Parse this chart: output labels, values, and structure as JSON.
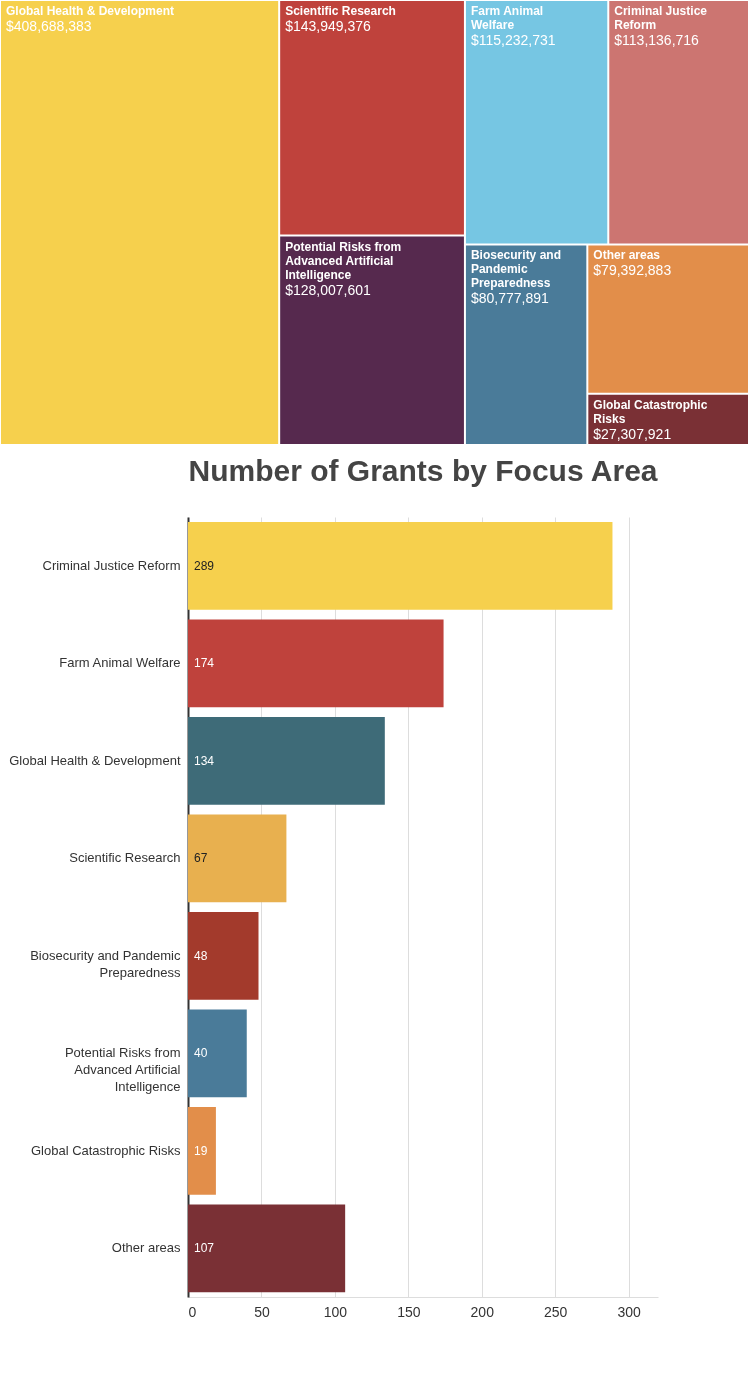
{
  "chart_data": [
    {
      "type": "other",
      "categories": [
        "Global Health & Development",
        "Scientific Research",
        "Potential Risks from Advanced Artificial Intelligence",
        "Farm Animal Welfare",
        "Criminal Justice Reform",
        "Biosecurity and Pandemic Preparedness",
        "Other areas",
        "Global Catastrophic Risks"
      ],
      "values": [
        408688383,
        143949376,
        128007601,
        115232731,
        113136716,
        80777891,
        79392883,
        27307921
      ],
      "value_labels": [
        "$408,688,383",
        "$143,949,376",
        "$128,007,601",
        "$115,232,731",
        "$113,136,716",
        "$80,777,891",
        "$79,392,883",
        "$27,307,921"
      ],
      "colors": [
        "#f6d04d",
        "#bf423c",
        "#56294e",
        "#76c6e3",
        "#cc7571",
        "#4a7b99",
        "#e28e4a",
        "#7a3035"
      ]
    },
    {
      "type": "bar",
      "orientation": "horizontal",
      "title": "Number of Grants by Focus Area",
      "categories": [
        "Criminal Justice Reform",
        "Farm Animal Welfare",
        "Global Health & Development",
        "Scientific Research",
        "Biosecurity and Pandemic Preparedness",
        "Potential Risks from Advanced Artificial Intelligence",
        "Global Catastrophic Risks",
        "Other areas"
      ],
      "values": [
        289,
        174,
        134,
        67,
        48,
        40,
        19,
        107
      ],
      "colors": [
        "#f6d04d",
        "#bf423c",
        "#3e6b78",
        "#e8b04f",
        "#a33a2c",
        "#4a7b99",
        "#e28e4a",
        "#7a3035"
      ],
      "xlim": [
        0,
        320
      ],
      "xticks": [
        0,
        50,
        100,
        150,
        200,
        250,
        300
      ],
      "grid": "x",
      "data_labels": true
    }
  ]
}
